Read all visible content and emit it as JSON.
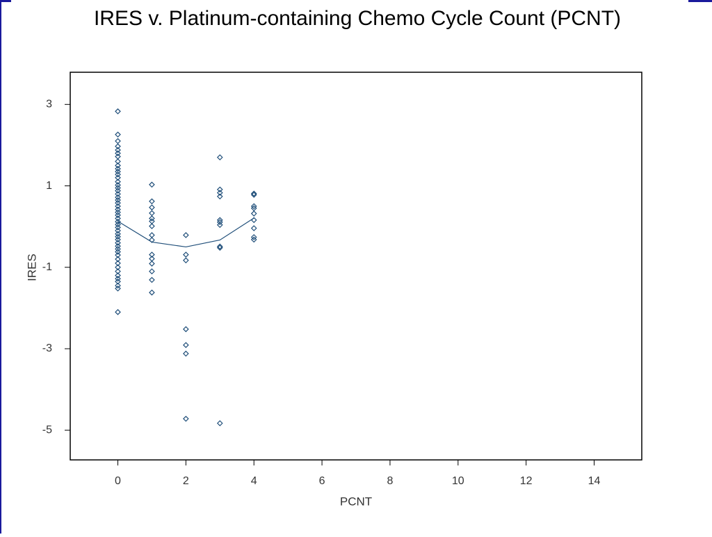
{
  "chart_data": {
    "type": "scatter",
    "title": "IRES v. Platinum-containing Chemo Cycle Count (PCNT)",
    "xlabel": "PCNT",
    "ylabel": "IRES",
    "color": "#1f4e79",
    "x": [
      0,
      0,
      0,
      0,
      0,
      0,
      0,
      0,
      0,
      0,
      0,
      0,
      0,
      0,
      0,
      0,
      0,
      0,
      0,
      0,
      0,
      0,
      0,
      0,
      0,
      0,
      0,
      0,
      0,
      0,
      0,
      0,
      0,
      0,
      0,
      0,
      0,
      0,
      0,
      0,
      0,
      0,
      0,
      0,
      0,
      0,
      0,
      0,
      1,
      1,
      1,
      1,
      1,
      1,
      1,
      1,
      1,
      1,
      1,
      1,
      1,
      1,
      1,
      2,
      2,
      2,
      2,
      2,
      2,
      2,
      3,
      3,
      3,
      3,
      3,
      3,
      3,
      3,
      3,
      3,
      4,
      4,
      4,
      4,
      4,
      4,
      4,
      4,
      4
    ],
    "y": [
      2.83,
      2.26,
      2.1,
      1.97,
      1.88,
      1.8,
      1.72,
      1.6,
      1.5,
      1.42,
      1.35,
      1.28,
      1.2,
      1.1,
      1.02,
      0.95,
      0.88,
      0.8,
      0.72,
      0.65,
      0.58,
      0.5,
      0.42,
      0.35,
      0.28,
      0.2,
      0.12,
      0.05,
      -0.02,
      -0.1,
      -0.18,
      -0.25,
      -0.32,
      -0.4,
      -0.48,
      -0.55,
      -0.62,
      -0.7,
      -0.8,
      -0.9,
      -1.0,
      -1.1,
      -1.2,
      -1.28,
      -1.35,
      -1.45,
      -1.52,
      -2.1,
      1.03,
      0.62,
      0.47,
      0.33,
      0.2,
      0.13,
      0.01,
      -0.21,
      -0.33,
      -0.69,
      -0.79,
      -0.91,
      -1.1,
      -1.31,
      -1.62,
      -0.21,
      -0.69,
      -0.83,
      -2.52,
      -2.91,
      -3.12,
      -4.72,
      1.7,
      0.91,
      0.83,
      0.74,
      0.16,
      0.11,
      0.04,
      -0.49,
      -0.52,
      -4.83,
      0.81,
      0.78,
      0.5,
      0.45,
      0.32,
      0.16,
      -0.04,
      -0.26,
      -0.32
    ],
    "fit_x": [
      0,
      1,
      2,
      3,
      4
    ],
    "fit_y": [
      0.13,
      -0.38,
      -0.5,
      -0.33,
      0.21
    ],
    "xlim": [
      -1.4,
      15.4
    ],
    "xticks": [
      0,
      2,
      4,
      6,
      8,
      10,
      12,
      14
    ],
    "ylim": [
      -5.73,
      3.79
    ],
    "yticks": [
      -5,
      -3,
      -1,
      1,
      3
    ]
  }
}
